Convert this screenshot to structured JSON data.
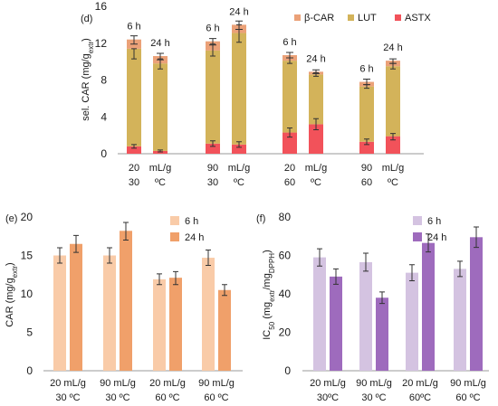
{
  "chart_data": [
    {
      "panel": "(d)",
      "type": "bar",
      "stacked": true,
      "ylabel_parts": [
        "sel. CAR (mg/g",
        "extr",
        ")"
      ],
      "ylim": [
        0,
        16
      ],
      "yticks": [
        0,
        4,
        8,
        12,
        16
      ],
      "bars": [
        {
          "hour": "6 h",
          "line1": "20",
          "line2": "30",
          "values": {
            "ASTX": 0.8,
            "LUT": 10.6,
            "β-CAR": 1.0
          },
          "total": 12.4,
          "err_total": [
            11.9,
            12.8
          ],
          "err_lut_top": [
            10.3,
            11.4
          ],
          "err_astx_top": [
            0.6,
            1.0
          ]
        },
        {
          "hour": "24 h",
          "line1": "mL/g",
          "line2": "ºC",
          "values": {
            "ASTX": 0.3,
            "LUT": 9.5,
            "β-CAR": 0.8
          },
          "total": 10.6,
          "err_total": [
            10.2,
            10.9
          ],
          "err_lut_top": [
            9.2,
            10.3
          ],
          "err_astx_top": [
            0.2,
            0.4
          ]
        },
        {
          "hour": "6 h",
          "line1": "90",
          "line2": "30",
          "values": {
            "ASTX": 1.1,
            "LUT": 10.1,
            "β-CAR": 1.0
          },
          "total": 12.2,
          "err_total": [
            11.8,
            12.5
          ],
          "err_lut_top": [
            10.6,
            11.9
          ],
          "err_astx_top": [
            0.8,
            1.4
          ]
        },
        {
          "hour": "24 h",
          "line1": "mL/g",
          "line2": "ºC",
          "values": {
            "ASTX": 1.0,
            "LUT": 12.1,
            "β-CAR": 0.9
          },
          "total": 14.0,
          "err_total": [
            13.5,
            14.4
          ],
          "err_lut_top": [
            12.1,
            14.0
          ],
          "err_astx_top": [
            0.7,
            1.3
          ]
        },
        {
          "hour": "6 h",
          "line1": "20",
          "line2": "60",
          "values": {
            "ASTX": 2.3,
            "LUT": 7.8,
            "β-CAR": 0.6
          },
          "total": 10.7,
          "err_total": [
            10.4,
            11.0
          ],
          "err_lut_top": [
            9.8,
            10.4
          ],
          "err_astx_top": [
            1.8,
            2.8
          ]
        },
        {
          "hour": "24 h",
          "line1": "mL/g",
          "line2": "ºC",
          "values": {
            "ASTX": 3.2,
            "LUT": 5.4,
            "β-CAR": 0.3
          },
          "total": 8.9,
          "err_total": [
            8.7,
            9.1
          ],
          "err_lut_top": [
            8.4,
            8.8
          ],
          "err_astx_top": [
            2.6,
            3.8
          ]
        },
        {
          "hour": "6 h",
          "line1": "90",
          "line2": "60",
          "values": {
            "ASTX": 1.3,
            "LUT": 6.0,
            "β-CAR": 0.5
          },
          "total": 7.8,
          "err_total": [
            7.5,
            8.1
          ],
          "err_lut_top": [
            7.1,
            7.5
          ],
          "err_astx_top": [
            1.0,
            1.6
          ]
        },
        {
          "hour": "24 h",
          "line1": "mL/g",
          "line2": "ºC",
          "values": {
            "ASTX": 1.9,
            "LUT": 7.6,
            "β-CAR": 0.6
          },
          "total": 10.1,
          "err_total": [
            9.8,
            10.3
          ],
          "err_lut_top": [
            9.2,
            9.8
          ],
          "err_astx_top": [
            1.5,
            2.2
          ]
        }
      ],
      "legend": [
        {
          "name": "β-CAR",
          "color": "#eba178"
        },
        {
          "name": "LUT",
          "color": "#d3b35a"
        },
        {
          "name": "ASTX",
          "color": "#f2525a"
        }
      ],
      "legend_position": "top-right",
      "grid": false
    },
    {
      "panel": "(e)",
      "type": "bar",
      "ylabel_parts": [
        "CAR (mg/g",
        "extr",
        ")"
      ],
      "ylim": [
        0,
        20
      ],
      "yticks": [
        0,
        5,
        10,
        15,
        20
      ],
      "categories": [
        {
          "line1": "20 mL/g",
          "line2": "30 ºC"
        },
        {
          "line1": "90 mL/g",
          "line2": "30 ºC"
        },
        {
          "line1": "20 mL/g",
          "line2": "60 ºC"
        },
        {
          "line1": "90 mL/g",
          "line2": "60 ºC"
        }
      ],
      "series": [
        {
          "name": "6 h",
          "color": "#f9cba8",
          "values": [
            15.0,
            15.0,
            11.9,
            14.7
          ],
          "err_low": [
            14.0,
            14.0,
            11.2,
            13.7
          ],
          "err_high": [
            16.0,
            16.0,
            12.6,
            15.7
          ]
        },
        {
          "name": "24 h",
          "color": "#f0a06a",
          "values": [
            16.5,
            18.2,
            12.1,
            10.5
          ],
          "err_low": [
            15.4,
            17.0,
            11.2,
            9.8
          ],
          "err_high": [
            17.6,
            19.3,
            12.9,
            11.2
          ]
        }
      ],
      "legend_position": "top-right",
      "grid": false
    },
    {
      "panel": "(f)",
      "type": "bar",
      "ylabel_parts": [
        "IC",
        "50",
        " (mg",
        "extr",
        "/mg",
        "DPPH",
        ")"
      ],
      "ylim": [
        0,
        80
      ],
      "yticks": [
        0,
        20,
        40,
        60,
        80
      ],
      "categories": [
        {
          "line1": "20 mL/g",
          "line2": "30ºC"
        },
        {
          "line1": "90 mL/g",
          "line2": "30 ºC"
        },
        {
          "line1": "20 mL/g",
          "line2": "60ºC"
        },
        {
          "line1": "90 mL/g",
          "line2": "60 ºC"
        }
      ],
      "series": [
        {
          "name": "6 h",
          "color": "#d4c3e1",
          "values": [
            59.0,
            56.5,
            51.0,
            53.0
          ],
          "err_low": [
            54.5,
            51.8,
            46.8,
            49.0
          ],
          "err_high": [
            63.5,
            61.2,
            55.2,
            57.0
          ]
        },
        {
          "name": "24 h",
          "color": "#9e6bbd",
          "values": [
            49.0,
            38.0,
            66.5,
            69.5
          ],
          "err_low": [
            45.0,
            35.0,
            61.8,
            64.2
          ],
          "err_high": [
            53.0,
            41.0,
            71.2,
            74.8
          ]
        }
      ],
      "legend_position": "top-right",
      "grid": false
    }
  ]
}
